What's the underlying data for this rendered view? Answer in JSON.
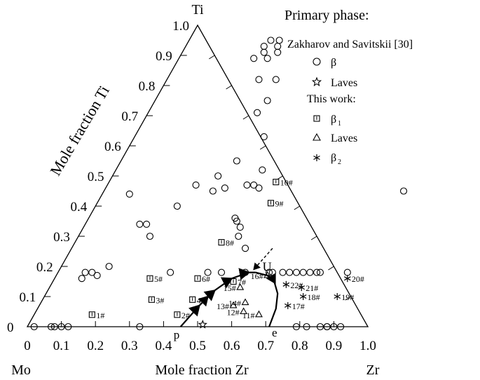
{
  "chart_data": {
    "type": "scatter",
    "subtype": "ternary",
    "corners": {
      "top": "Ti",
      "left": "Mo",
      "right": "Zr"
    },
    "axis_titles": {
      "left": "Mole fraction Ti",
      "bottom": "Mole fraction Zr"
    },
    "bottom_ticks": [
      "0",
      "0.1",
      "0.2",
      "0.3",
      "0.4",
      "0.5",
      "0.6",
      "0.7",
      "0.8",
      "0.9",
      "1.0"
    ],
    "left_ticks": [
      "0",
      "0.1",
      "0.2",
      "0.3",
      "0.4",
      "0.5",
      "0.6",
      "0.7",
      "0.8",
      "0.9",
      "1.0"
    ],
    "legend": {
      "heading": "Primary phase:",
      "group1": "Zakharov and Savitskii [30]",
      "beta": "β",
      "laves": "Laves",
      "group2": "This work:",
      "beta1": "β",
      "beta1_sub": "1",
      "laves2": "Laves",
      "beta2": "β",
      "beta2_sub": "2"
    },
    "point_labels": {
      "U": "U",
      "p": "p",
      "e": "e"
    },
    "zakharov_beta": [
      [
        0.24,
        0.95
      ],
      [
        0.265,
        0.95
      ],
      [
        0.23,
        0.93
      ],
      [
        0.27,
        0.93
      ],
      [
        0.24,
        0.91
      ],
      [
        0.28,
        0.91
      ],
      [
        0.22,
        0.89
      ],
      [
        0.26,
        0.89
      ],
      [
        0.27,
        0.82
      ],
      [
        0.32,
        0.82
      ],
      [
        0.33,
        0.75
      ],
      [
        0.32,
        0.71
      ],
      [
        0.38,
        0.63
      ],
      [
        0.08,
        0.44
      ],
      [
        0.16,
        0.34
      ],
      [
        0.18,
        0.34
      ],
      [
        0.32,
        0.45
      ],
      [
        0.35,
        0.46
      ],
      [
        0.31,
        0.5
      ],
      [
        0.34,
        0.55
      ],
      [
        0.43,
        0.52
      ],
      [
        0.45,
        0.46
      ],
      [
        0.43,
        0.47
      ],
      [
        0.41,
        0.47
      ],
      [
        0.26,
        0.47
      ],
      [
        0.24,
        0.4
      ],
      [
        0.21,
        0.3
      ],
      [
        0.43,
        0.36
      ],
      [
        0.44,
        0.35
      ],
      [
        0.46,
        0.33
      ],
      [
        0.47,
        0.3
      ],
      [
        0.51,
        0.26
      ],
      [
        0.08,
        0.16
      ],
      [
        0.1,
        0.18
      ],
      [
        0.12,
        0.17
      ],
      [
        0.14,
        0.2
      ],
      [
        0.33,
        0.18
      ],
      [
        0.44,
        0.18
      ],
      [
        0.48,
        0.18
      ],
      [
        0.55,
        0.18
      ],
      [
        0.62,
        0.18
      ],
      [
        0.63,
        0.18
      ],
      [
        0.66,
        0.18
      ],
      [
        0.68,
        0.18
      ],
      [
        0.7,
        0.18
      ],
      [
        0.72,
        0.18
      ],
      [
        0.74,
        0.18
      ],
      [
        0.76,
        0.18
      ],
      [
        0.77,
        0.18
      ],
      [
        0.02,
        0.0
      ],
      [
        0.07,
        0.0
      ],
      [
        0.08,
        0.0
      ],
      [
        0.1,
        0.0
      ],
      [
        0.12,
        0.0
      ],
      [
        0.33,
        0.0
      ],
      [
        0.79,
        0.0
      ],
      [
        0.82,
        0.0
      ],
      [
        0.86,
        0.0
      ],
      [
        0.88,
        0.0
      ],
      [
        0.9,
        0.0
      ],
      [
        0.92,
        0.0
      ],
      [
        0.08,
        0.18
      ],
      [
        0.88,
        0.45
      ],
      [
        0.85,
        0.18
      ],
      [
        0.88,
        0.0
      ]
    ],
    "zakharov_laves": [
      [
        0.515,
        0.0
      ]
    ],
    "beta1": [
      {
        "label": "1#",
        "x": 0.17,
        "y": 0.04
      },
      {
        "label": "2#",
        "x": 0.42,
        "y": 0.04
      },
      {
        "label": "3#",
        "x": 0.32,
        "y": 0.09
      },
      {
        "label": "4#",
        "x": 0.44,
        "y": 0.09
      },
      {
        "label": "5#",
        "x": 0.28,
        "y": 0.16
      },
      {
        "label": "6#",
        "x": 0.42,
        "y": 0.16
      },
      {
        "label": "7#",
        "x": 0.53,
        "y": 0.15
      },
      {
        "label": "8#",
        "x": 0.43,
        "y": 0.28
      },
      {
        "label": "9#",
        "x": 0.51,
        "y": 0.41
      },
      {
        "label": "10#",
        "x": 0.49,
        "y": 0.48
      }
    ],
    "laves": [
      {
        "label": "11#",
        "x": 0.66,
        "y": 0.04
      },
      {
        "label": "12#",
        "x": 0.61,
        "y": 0.05
      },
      {
        "label": "13#",
        "x": 0.57,
        "y": 0.07
      },
      {
        "label": "14#",
        "x": 0.6,
        "y": 0.08
      },
      {
        "label": "15#",
        "x": 0.56,
        "y": 0.13
      },
      {
        "label": "16#",
        "x": 0.62,
        "y": 0.17
      }
    ],
    "beta2": [
      {
        "label": "17#",
        "x": 0.73,
        "y": 0.07
      },
      {
        "label": "18#",
        "x": 0.76,
        "y": 0.1
      },
      {
        "label": "19#",
        "x": 0.86,
        "y": 0.1
      },
      {
        "label": "20#",
        "x": 0.86,
        "y": 0.16
      },
      {
        "label": "21#",
        "x": 0.74,
        "y": 0.13
      },
      {
        "label": "22#",
        "x": 0.69,
        "y": 0.14
      }
    ],
    "curve_p_to_U": [
      [
        0.45,
        0.0
      ],
      [
        0.47,
        0.07
      ],
      [
        0.49,
        0.12
      ],
      [
        0.52,
        0.16
      ],
      [
        0.56,
        0.18
      ],
      [
        0.58,
        0.18
      ]
    ],
    "curve_U_to_e": [
      [
        0.58,
        0.18
      ],
      [
        0.62,
        0.17
      ],
      [
        0.65,
        0.15
      ],
      [
        0.68,
        0.11
      ],
      [
        0.7,
        0.06
      ],
      [
        0.71,
        0.0
      ]
    ],
    "arrow_to_U": {
      "from": [
        0.59,
        0.26
      ],
      "to": [
        0.57,
        0.19
      ]
    }
  }
}
